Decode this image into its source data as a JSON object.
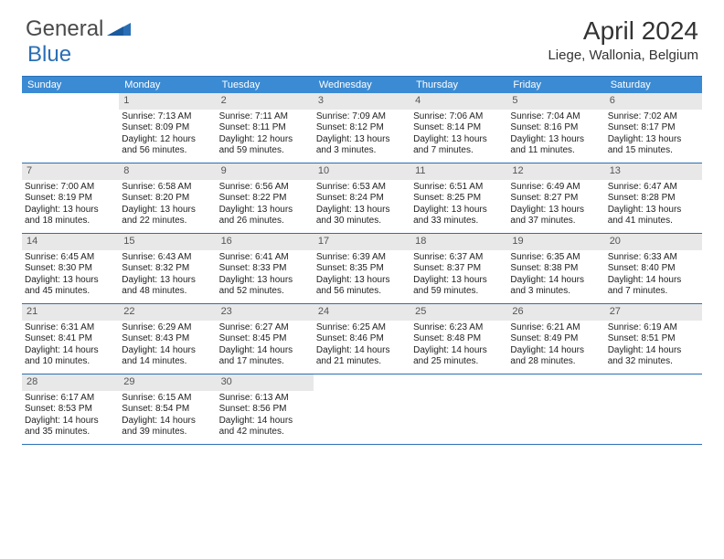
{
  "logo": {
    "text1": "General",
    "text2": "Blue"
  },
  "title": "April 2024",
  "location": "Liege, Wallonia, Belgium",
  "colors": {
    "header_bg": "#3b8bd4",
    "header_text": "#ffffff",
    "border": "#2a6fb5",
    "daynum_bg": "#e8e8e8",
    "daynum_text": "#555555",
    "body_text": "#222222",
    "logo_gray": "#4a4a4a",
    "logo_blue": "#2a6fb5",
    "page_bg": "#ffffff"
  },
  "weekdays": [
    "Sunday",
    "Monday",
    "Tuesday",
    "Wednesday",
    "Thursday",
    "Friday",
    "Saturday"
  ],
  "weeks": [
    [
      {
        "num": "",
        "lines": []
      },
      {
        "num": "1",
        "lines": [
          "Sunrise: 7:13 AM",
          "Sunset: 8:09 PM",
          "Daylight: 12 hours",
          "and 56 minutes."
        ]
      },
      {
        "num": "2",
        "lines": [
          "Sunrise: 7:11 AM",
          "Sunset: 8:11 PM",
          "Daylight: 12 hours",
          "and 59 minutes."
        ]
      },
      {
        "num": "3",
        "lines": [
          "Sunrise: 7:09 AM",
          "Sunset: 8:12 PM",
          "Daylight: 13 hours",
          "and 3 minutes."
        ]
      },
      {
        "num": "4",
        "lines": [
          "Sunrise: 7:06 AM",
          "Sunset: 8:14 PM",
          "Daylight: 13 hours",
          "and 7 minutes."
        ]
      },
      {
        "num": "5",
        "lines": [
          "Sunrise: 7:04 AM",
          "Sunset: 8:16 PM",
          "Daylight: 13 hours",
          "and 11 minutes."
        ]
      },
      {
        "num": "6",
        "lines": [
          "Sunrise: 7:02 AM",
          "Sunset: 8:17 PM",
          "Daylight: 13 hours",
          "and 15 minutes."
        ]
      }
    ],
    [
      {
        "num": "7",
        "lines": [
          "Sunrise: 7:00 AM",
          "Sunset: 8:19 PM",
          "Daylight: 13 hours",
          "and 18 minutes."
        ]
      },
      {
        "num": "8",
        "lines": [
          "Sunrise: 6:58 AM",
          "Sunset: 8:20 PM",
          "Daylight: 13 hours",
          "and 22 minutes."
        ]
      },
      {
        "num": "9",
        "lines": [
          "Sunrise: 6:56 AM",
          "Sunset: 8:22 PM",
          "Daylight: 13 hours",
          "and 26 minutes."
        ]
      },
      {
        "num": "10",
        "lines": [
          "Sunrise: 6:53 AM",
          "Sunset: 8:24 PM",
          "Daylight: 13 hours",
          "and 30 minutes."
        ]
      },
      {
        "num": "11",
        "lines": [
          "Sunrise: 6:51 AM",
          "Sunset: 8:25 PM",
          "Daylight: 13 hours",
          "and 33 minutes."
        ]
      },
      {
        "num": "12",
        "lines": [
          "Sunrise: 6:49 AM",
          "Sunset: 8:27 PM",
          "Daylight: 13 hours",
          "and 37 minutes."
        ]
      },
      {
        "num": "13",
        "lines": [
          "Sunrise: 6:47 AM",
          "Sunset: 8:28 PM",
          "Daylight: 13 hours",
          "and 41 minutes."
        ]
      }
    ],
    [
      {
        "num": "14",
        "lines": [
          "Sunrise: 6:45 AM",
          "Sunset: 8:30 PM",
          "Daylight: 13 hours",
          "and 45 minutes."
        ]
      },
      {
        "num": "15",
        "lines": [
          "Sunrise: 6:43 AM",
          "Sunset: 8:32 PM",
          "Daylight: 13 hours",
          "and 48 minutes."
        ]
      },
      {
        "num": "16",
        "lines": [
          "Sunrise: 6:41 AM",
          "Sunset: 8:33 PM",
          "Daylight: 13 hours",
          "and 52 minutes."
        ]
      },
      {
        "num": "17",
        "lines": [
          "Sunrise: 6:39 AM",
          "Sunset: 8:35 PM",
          "Daylight: 13 hours",
          "and 56 minutes."
        ]
      },
      {
        "num": "18",
        "lines": [
          "Sunrise: 6:37 AM",
          "Sunset: 8:37 PM",
          "Daylight: 13 hours",
          "and 59 minutes."
        ]
      },
      {
        "num": "19",
        "lines": [
          "Sunrise: 6:35 AM",
          "Sunset: 8:38 PM",
          "Daylight: 14 hours",
          "and 3 minutes."
        ]
      },
      {
        "num": "20",
        "lines": [
          "Sunrise: 6:33 AM",
          "Sunset: 8:40 PM",
          "Daylight: 14 hours",
          "and 7 minutes."
        ]
      }
    ],
    [
      {
        "num": "21",
        "lines": [
          "Sunrise: 6:31 AM",
          "Sunset: 8:41 PM",
          "Daylight: 14 hours",
          "and 10 minutes."
        ]
      },
      {
        "num": "22",
        "lines": [
          "Sunrise: 6:29 AM",
          "Sunset: 8:43 PM",
          "Daylight: 14 hours",
          "and 14 minutes."
        ]
      },
      {
        "num": "23",
        "lines": [
          "Sunrise: 6:27 AM",
          "Sunset: 8:45 PM",
          "Daylight: 14 hours",
          "and 17 minutes."
        ]
      },
      {
        "num": "24",
        "lines": [
          "Sunrise: 6:25 AM",
          "Sunset: 8:46 PM",
          "Daylight: 14 hours",
          "and 21 minutes."
        ]
      },
      {
        "num": "25",
        "lines": [
          "Sunrise: 6:23 AM",
          "Sunset: 8:48 PM",
          "Daylight: 14 hours",
          "and 25 minutes."
        ]
      },
      {
        "num": "26",
        "lines": [
          "Sunrise: 6:21 AM",
          "Sunset: 8:49 PM",
          "Daylight: 14 hours",
          "and 28 minutes."
        ]
      },
      {
        "num": "27",
        "lines": [
          "Sunrise: 6:19 AM",
          "Sunset: 8:51 PM",
          "Daylight: 14 hours",
          "and 32 minutes."
        ]
      }
    ],
    [
      {
        "num": "28",
        "lines": [
          "Sunrise: 6:17 AM",
          "Sunset: 8:53 PM",
          "Daylight: 14 hours",
          "and 35 minutes."
        ]
      },
      {
        "num": "29",
        "lines": [
          "Sunrise: 6:15 AM",
          "Sunset: 8:54 PM",
          "Daylight: 14 hours",
          "and 39 minutes."
        ]
      },
      {
        "num": "30",
        "lines": [
          "Sunrise: 6:13 AM",
          "Sunset: 8:56 PM",
          "Daylight: 14 hours",
          "and 42 minutes."
        ]
      },
      {
        "num": "",
        "lines": []
      },
      {
        "num": "",
        "lines": []
      },
      {
        "num": "",
        "lines": []
      },
      {
        "num": "",
        "lines": []
      }
    ]
  ]
}
